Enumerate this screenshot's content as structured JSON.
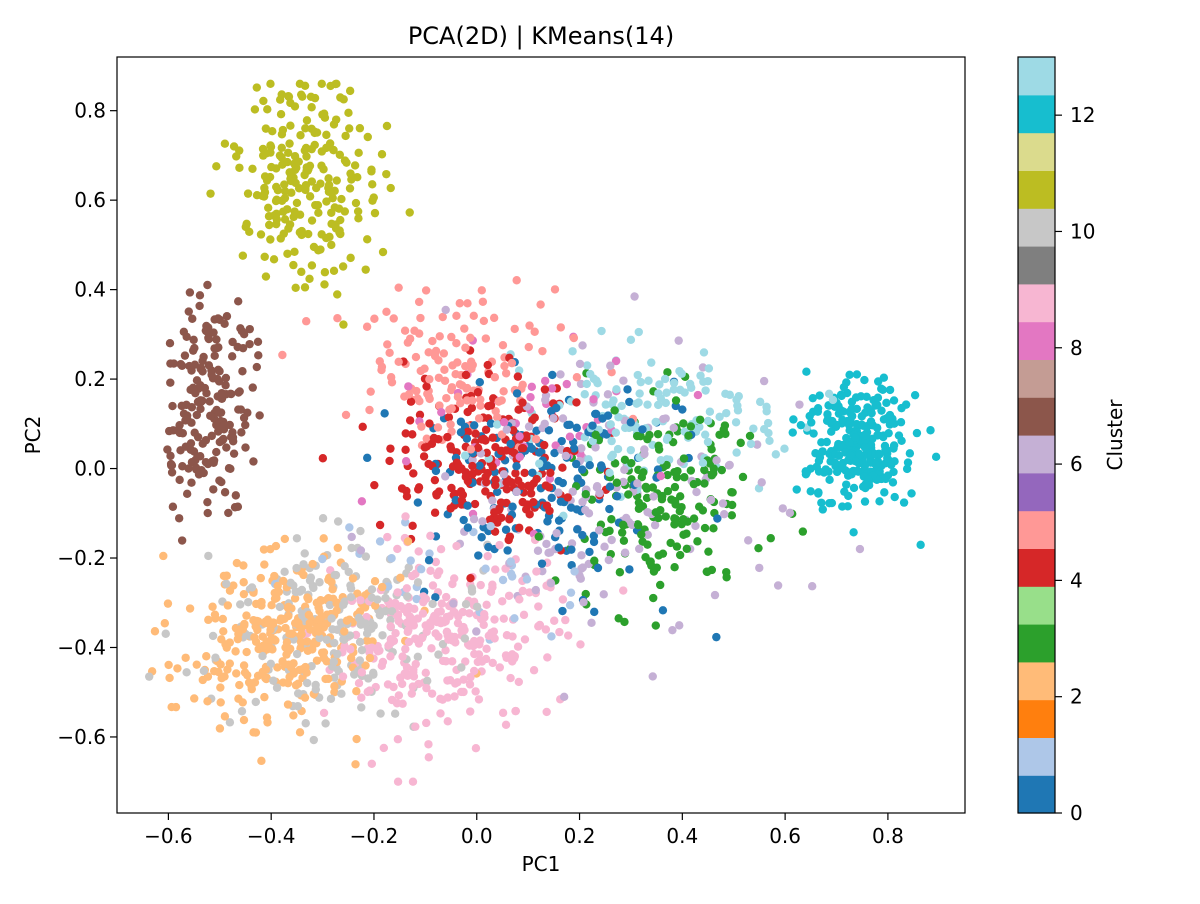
{
  "chart_data": {
    "type": "scatter",
    "title": "PCA(2D) | KMeans(14)",
    "xlabel": "PC1",
    "ylabel": "PC2",
    "xlim": [
      -0.7,
      0.95
    ],
    "ylim": [
      -0.77,
      0.92
    ],
    "xticks": [
      -0.6,
      -0.4,
      -0.2,
      0.0,
      0.2,
      0.4,
      0.6,
      0.8
    ],
    "xtick_labels": [
      "−0.6",
      "−0.4",
      "−0.2",
      "0.0",
      "0.2",
      "0.4",
      "0.6",
      "0.8"
    ],
    "yticks": [
      -0.6,
      -0.4,
      -0.2,
      0.0,
      0.2,
      0.4,
      0.6,
      0.8
    ],
    "ytick_labels": [
      "−0.6",
      "−0.4",
      "−0.2",
      "0.0",
      "0.2",
      "0.4",
      "0.6",
      "0.8"
    ],
    "grid": false,
    "colorbar": {
      "label": "Cluster",
      "range": [
        0,
        13
      ],
      "ticks": [
        0,
        2,
        4,
        6,
        8,
        10,
        12
      ],
      "tick_labels": [
        "0",
        "2",
        "4",
        "6",
        "8",
        "10",
        "12"
      ],
      "colors": [
        "#1f77b4",
        "#aec7e8",
        "#ff7f0e",
        "#ffbb78",
        "#2ca02c",
        "#98df8a",
        "#d62728",
        "#ff9896",
        "#9467bd",
        "#c5b0d5",
        "#8c564b",
        "#c49c94",
        "#e377c2",
        "#f7b6d2",
        "#7f7f7f",
        "#c7c7c7",
        "#bcbd22",
        "#dbdb8d",
        "#17becf",
        "#9edae5"
      ]
    },
    "cluster_colors": [
      "#1f77b4",
      "#aec7e8",
      "#ffbb78",
      "#2ca02c",
      "#d62728",
      "#ff9896",
      "#c5b0d5",
      "#8c564b",
      "#e377c2",
      "#f7b6d2",
      "#c7c7c7",
      "#bcbd22",
      "#17becf",
      "#9edae5"
    ],
    "clusters": [
      {
        "cluster": 0,
        "center": [
          0.12,
          -0.05
        ],
        "spread": [
          0.14,
          0.14
        ],
        "count": 170
      },
      {
        "cluster": 1,
        "center": [
          -0.05,
          -0.28
        ],
        "spread": [
          0.14,
          0.11
        ],
        "count": 30
      },
      {
        "cluster": 2,
        "center": [
          -0.38,
          -0.38
        ],
        "spread": [
          0.11,
          0.11
        ],
        "count": 300
      },
      {
        "cluster": 3,
        "center": [
          0.35,
          -0.05
        ],
        "spread": [
          0.11,
          0.14
        ],
        "count": 180
      },
      {
        "cluster": 4,
        "center": [
          0.02,
          0.02
        ],
        "spread": [
          0.12,
          0.1
        ],
        "count": 210
      },
      {
        "cluster": 5,
        "center": [
          -0.05,
          0.22
        ],
        "spread": [
          0.12,
          0.1
        ],
        "count": 140
      },
      {
        "cluster": 6,
        "center": [
          0.25,
          -0.05
        ],
        "spread": [
          0.2,
          0.18
        ],
        "count": 150
      },
      {
        "cluster": 7,
        "center": [
          -0.52,
          0.15
        ],
        "spread": [
          0.05,
          0.14
        ],
        "count": 200
      },
      {
        "cluster": 8,
        "center": [
          0.12,
          0.08
        ],
        "spread": [
          0.14,
          0.1
        ],
        "count": 45
      },
      {
        "cluster": 9,
        "center": [
          -0.05,
          -0.38
        ],
        "spread": [
          0.13,
          0.12
        ],
        "count": 300
      },
      {
        "cluster": 10,
        "center": [
          -0.3,
          -0.35
        ],
        "spread": [
          0.13,
          0.12
        ],
        "count": 200
      },
      {
        "cluster": 11,
        "center": [
          -0.33,
          0.64
        ],
        "spread": [
          0.08,
          0.12
        ],
        "count": 230
      },
      {
        "cluster": 12,
        "center": [
          0.74,
          0.06
        ],
        "spread": [
          0.06,
          0.08
        ],
        "count": 270
      },
      {
        "cluster": 13,
        "center": [
          0.35,
          0.12
        ],
        "spread": [
          0.16,
          0.1
        ],
        "count": 140
      }
    ]
  }
}
